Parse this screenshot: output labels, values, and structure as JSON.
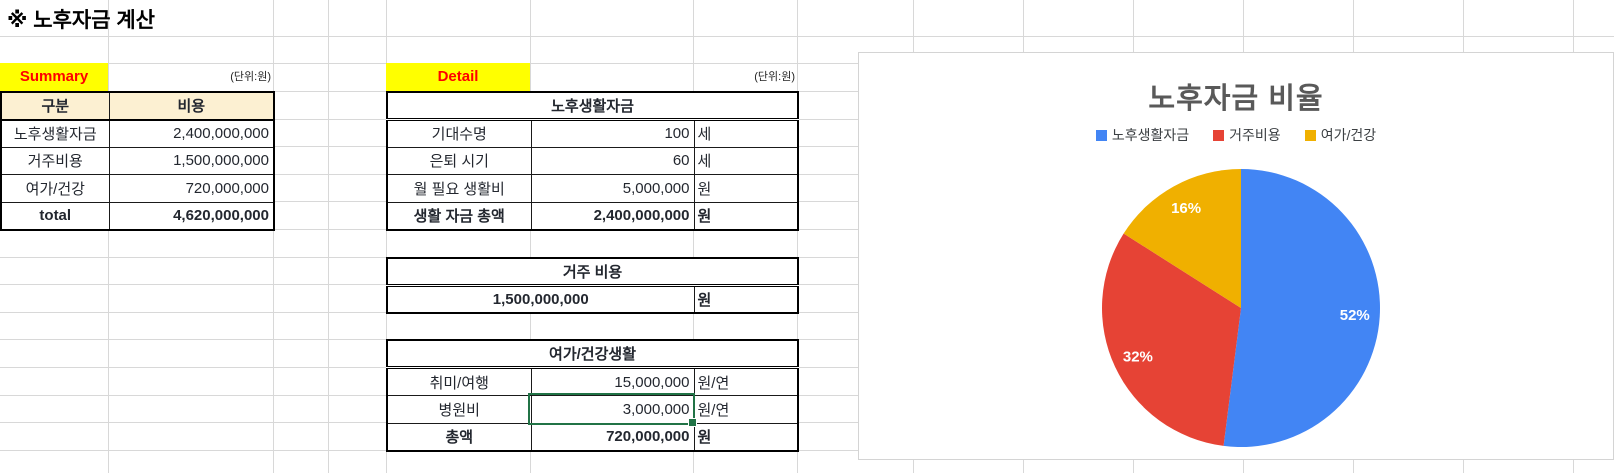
{
  "title": "※ 노후자금 계산",
  "summary": {
    "badge": "Summary",
    "unit_note": "(단위:원)",
    "headers": {
      "category": "구분",
      "cost": "비용"
    },
    "rows": [
      {
        "category": "노후생활자금",
        "cost": "2,400,000,000"
      },
      {
        "category": "거주비용",
        "cost": "1,500,000,000"
      },
      {
        "category": "여가/건강",
        "cost": "720,000,000"
      }
    ],
    "total": {
      "category": "total",
      "cost": "4,620,000,000"
    }
  },
  "detail": {
    "badge": "Detail",
    "unit_note": "(단위:원)",
    "life_fund": {
      "title": "노후생활자금",
      "rows": [
        {
          "label": "기대수명",
          "value": "100",
          "unit": "세"
        },
        {
          "label": "은퇴 시기",
          "value": "60",
          "unit": "세"
        },
        {
          "label": "월 필요 생활비",
          "value": "5,000,000",
          "unit": "원"
        }
      ],
      "total": {
        "label": "생활 자금 총액",
        "value": "2,400,000,000",
        "unit": "원"
      }
    },
    "housing": {
      "title": "거주 비용",
      "value": "1,500,000,000",
      "unit": "원"
    },
    "leisure": {
      "title": "여가/건강생활",
      "rows": [
        {
          "label": "취미/여행",
          "value": "15,000,000",
          "unit": "원/연"
        },
        {
          "label": "병원비",
          "value": "3,000,000",
          "unit": "원/연"
        }
      ],
      "total": {
        "label": "총액",
        "value": "720,000,000",
        "unit": "원"
      }
    }
  },
  "chart_data": {
    "type": "pie",
    "title": "노후자금 비율",
    "labels": [
      "노후생활자금",
      "거주비용",
      "여가/건강"
    ],
    "values": [
      52,
      32,
      16
    ],
    "value_labels": [
      "52%",
      "32%",
      "16%"
    ],
    "colors": [
      "#4285F4",
      "#E64335",
      "#F0B000"
    ],
    "legend_position": "top",
    "start_angle": "12 o'clock",
    "direction": "clockwise",
    "label_color": "#FFFFFF",
    "title_color": "#595959"
  },
  "colors": {
    "badge_bg": "#FFFF00",
    "badge_text": "#FF0000",
    "table_header_bg": "#FCF0D2",
    "selection_border": "#217346",
    "gridline": "#D8D8D8"
  }
}
